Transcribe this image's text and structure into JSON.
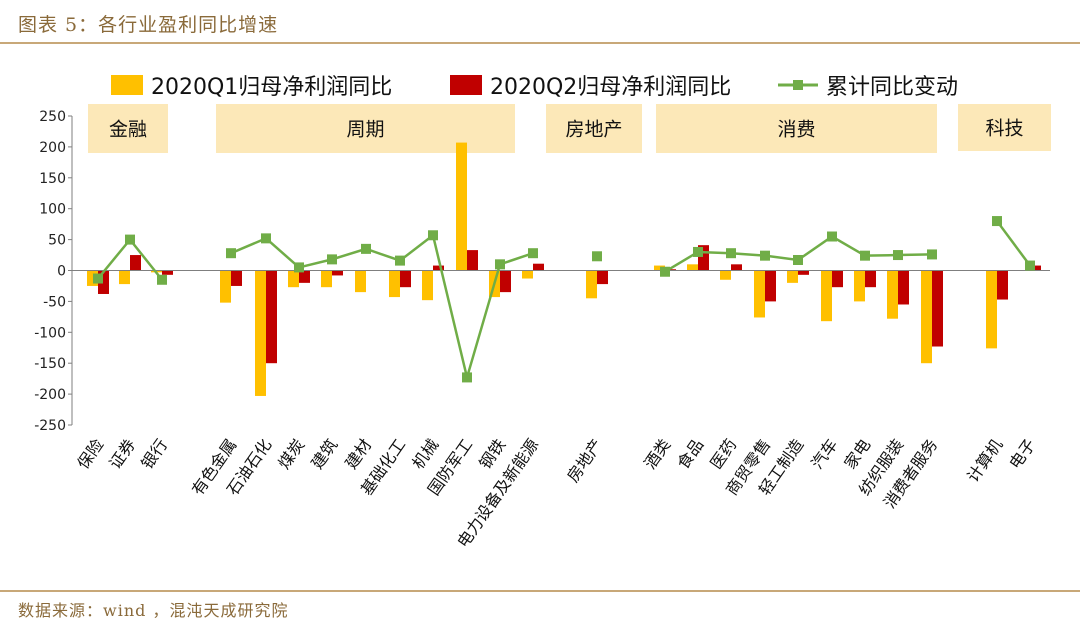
{
  "figure": {
    "title": "图表 5：各行业盈利同比增速",
    "source": "数据来源：wind ，混沌天成研究院"
  },
  "colors": {
    "q1": "#FFC000",
    "q2": "#C00000",
    "cum": "#70AD47",
    "group_box": "#FCE8B8",
    "rule": "#C8A878"
  },
  "chart_data": {
    "type": "bar",
    "title": "",
    "xlabel": "",
    "ylabel": "",
    "ylim": [
      -250,
      250
    ],
    "yticks": [
      250,
      200,
      150,
      100,
      50,
      0,
      -50,
      -100,
      -150,
      -200,
      -250
    ],
    "categories": [
      "保险",
      "证券",
      "银行",
      "有色金属",
      "石油石化",
      "煤炭",
      "建筑",
      "建材",
      "基础化工",
      "机械",
      "国防军工",
      "钢铁",
      "电力设备及新能源",
      "房地产",
      "酒类",
      "食品",
      "医药",
      "商贸零售",
      "轻工制造",
      "汽车",
      "家电",
      "纺织服装",
      "消费者服务",
      "计算机",
      "电子"
    ],
    "series": [
      {
        "name": "2020Q1归母净利润同比",
        "kind": "bar",
        "values": [
          -25,
          -22,
          -3,
          -52,
          -203,
          -27,
          -27,
          -35,
          -43,
          -48,
          207,
          -43,
          -13,
          -45,
          8,
          10,
          -15,
          -76,
          -20,
          -82,
          -50,
          -78,
          -150,
          -126,
          0
        ]
      },
      {
        "name": "2020Q2归母净利润同比",
        "kind": "bar",
        "values": [
          -38,
          25,
          -7,
          -25,
          -150,
          -20,
          -8,
          0,
          -27,
          8,
          33,
          -35,
          11,
          -22,
          2,
          41,
          10,
          -50,
          -7,
          -27,
          -27,
          -55,
          -123,
          -47,
          8
        ]
      },
      {
        "name": "累计同比变动",
        "kind": "line",
        "values": [
          -13,
          50,
          -15,
          28,
          52,
          5,
          18,
          35,
          16,
          57,
          -173,
          10,
          28,
          23,
          -2,
          30,
          28,
          24,
          17,
          55,
          24,
          25,
          26,
          80,
          8
        ]
      }
    ],
    "line_segments": [
      [
        0,
        2
      ],
      [
        3,
        12
      ],
      [
        14,
        22
      ],
      [
        23,
        24
      ]
    ],
    "groups": [
      {
        "label": "金融",
        "start": 0,
        "end": 2
      },
      {
        "label": "周期",
        "start": 3,
        "end": 12
      },
      {
        "label": "房地产",
        "start": 13,
        "end": 13
      },
      {
        "label": "消费",
        "start": 14,
        "end": 22
      },
      {
        "label": "科技",
        "start": 23,
        "end": 24
      }
    ],
    "legend_position": "top",
    "grid": false
  }
}
